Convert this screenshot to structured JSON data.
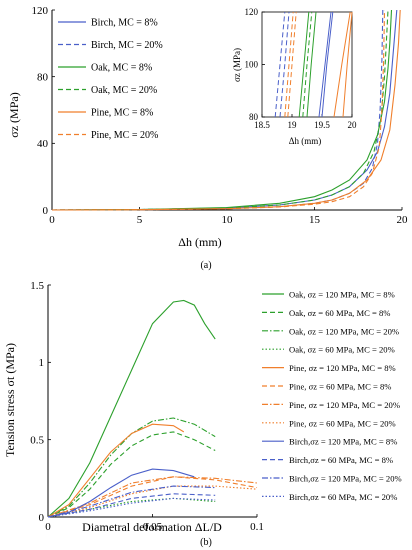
{
  "panel_labels": {
    "a": "(a)",
    "b": "(b)"
  },
  "colors": {
    "birch": "#4a5fc9",
    "oak": "#2ca02c",
    "pine": "#f07f2c",
    "axis": "#000000"
  },
  "chart_data": [
    {
      "type": "line",
      "panel": "a",
      "xlabel": "Δh  (mm)",
      "ylabel": "σz  (MPa)",
      "xlim": [
        0,
        20
      ],
      "ylim": [
        0,
        120
      ],
      "xticks": [
        "0",
        "5",
        "10",
        "15",
        "20"
      ],
      "yticks": [
        "0",
        "40",
        "80",
        "120"
      ],
      "grid": false,
      "legend_position": "top-left",
      "series": [
        {
          "name": "Birch, MC = 8%",
          "color": "#4a5fc9",
          "dash": "solid",
          "x": [
            0,
            5,
            10,
            13,
            15,
            16,
            17,
            18,
            18.6,
            19,
            19.3,
            19.5,
            19.7
          ],
          "y": [
            0,
            0.3,
            1.2,
            3,
            6,
            9,
            14,
            24,
            35,
            50,
            70,
            95,
            120
          ]
        },
        {
          "name": "Birch, MC = 20%",
          "color": "#4a5fc9",
          "dash": "dashed",
          "x": [
            0,
            5,
            10,
            13,
            15,
            16,
            17,
            17.8,
            18.3,
            18.6,
            18.75,
            18.85,
            18.9
          ],
          "y": [
            0,
            0.2,
            0.8,
            2,
            4,
            6,
            10,
            16,
            25,
            40,
            60,
            90,
            120
          ]
        },
        {
          "name": "Oak, MC = 8%",
          "color": "#2ca02c",
          "dash": "solid",
          "x": [
            0,
            5,
            10,
            13,
            15,
            16,
            17,
            18,
            18.6,
            19,
            19.2,
            19.3,
            19.4
          ],
          "y": [
            0,
            0.3,
            1.5,
            4,
            8,
            12,
            18,
            30,
            45,
            65,
            85,
            100,
            120
          ]
        },
        {
          "name": "Oak, MC = 20%",
          "color": "#2ca02c",
          "dash": "dashed",
          "x": [
            0,
            5,
            10,
            13,
            15,
            16,
            17,
            17.8,
            18.4,
            18.8,
            19,
            19.1,
            19.2
          ],
          "y": [
            0,
            0.3,
            1.2,
            3,
            6,
            9,
            14,
            22,
            35,
            55,
            80,
            100,
            120
          ]
        },
        {
          "name": "Pine, MC = 8%",
          "color": "#f07f2c",
          "dash": "solid",
          "x": [
            0,
            5,
            10,
            13,
            15,
            16,
            17,
            18,
            18.8,
            19.3,
            19.6,
            19.8,
            19.9
          ],
          "y": [
            0,
            0.2,
            0.8,
            2,
            4,
            6,
            10,
            18,
            30,
            48,
            75,
            100,
            120
          ]
        },
        {
          "name": "Pine, MC = 20%",
          "color": "#f07f2c",
          "dash": "dashed",
          "x": [
            0,
            5,
            10,
            13,
            15,
            16,
            17,
            17.8,
            18.3,
            18.7,
            18.85,
            18.95,
            19
          ],
          "y": [
            0,
            0.2,
            0.7,
            1.8,
            3.5,
            5,
            8,
            14,
            22,
            38,
            60,
            90,
            120
          ]
        }
      ],
      "inset": {
        "xlabel": "Δh  (mm)",
        "ylabel": "σz (MPa)",
        "xlim": [
          18.5,
          20
        ],
        "ylim": [
          80,
          120
        ],
        "xticks": [
          "18.5",
          "19",
          "19.5",
          "20"
        ],
        "yticks": [
          "80",
          "100",
          "120"
        ],
        "series": [
          {
            "color": "#4a5fc9",
            "dash": "dashed",
            "x": [
              18.72,
              18.8,
              18.88
            ],
            "y": [
              80,
              100,
              120
            ]
          },
          {
            "color": "#4a5fc9",
            "dash": "dashed",
            "x": [
              18.8,
              18.88,
              18.95
            ],
            "y": [
              80,
              100,
              120
            ]
          },
          {
            "color": "#f07f2c",
            "dash": "dashed",
            "x": [
              18.88,
              18.95,
              19.02
            ],
            "y": [
              80,
              100,
              120
            ]
          },
          {
            "color": "#f07f2c",
            "dash": "dashed",
            "x": [
              18.93,
              19.0,
              19.07
            ],
            "y": [
              80,
              100,
              120
            ]
          },
          {
            "color": "#2ca02c",
            "dash": "solid",
            "x": [
              19.12,
              19.2,
              19.28
            ],
            "y": [
              80,
              100,
              120
            ]
          },
          {
            "color": "#2ca02c",
            "dash": "dashed",
            "x": [
              19.18,
              19.25,
              19.33
            ],
            "y": [
              80,
              100,
              120
            ]
          },
          {
            "color": "#2ca02c",
            "dash": "solid",
            "x": [
              19.25,
              19.32,
              19.4
            ],
            "y": [
              80,
              100,
              120
            ]
          },
          {
            "color": "#4a5fc9",
            "dash": "solid",
            "x": [
              19.45,
              19.55,
              19.65
            ],
            "y": [
              80,
              100,
              120
            ]
          },
          {
            "color": "#4a5fc9",
            "dash": "solid",
            "x": [
              19.5,
              19.58,
              19.68
            ],
            "y": [
              80,
              100,
              120
            ]
          },
          {
            "color": "#f07f2c",
            "dash": "solid",
            "x": [
              19.7,
              19.83,
              19.97
            ],
            "y": [
              80,
              100,
              120
            ]
          },
          {
            "color": "#f07f2c",
            "dash": "solid",
            "x": [
              19.85,
              19.92,
              20.0
            ],
            "y": [
              80,
              100,
              120
            ]
          }
        ]
      }
    },
    {
      "type": "line",
      "panel": "b",
      "xlabel": "Diametral deformation ΔL/D",
      "ylabel": "Tension stress  σt  (MPa)",
      "xlim": [
        0,
        0.1
      ],
      "ylim": [
        0,
        1.5
      ],
      "xticks": [
        "0",
        "0.05",
        "0.1"
      ],
      "yticks": [
        "0",
        "0.5",
        "1",
        "1.5"
      ],
      "grid": false,
      "legend_position": "right",
      "series": [
        {
          "name": "Oak, σz = 120 MPa, MC = 8%",
          "color": "#2ca02c",
          "dash": "solid",
          "x": [
            0,
            0.01,
            0.02,
            0.03,
            0.04,
            0.05,
            0.06,
            0.065,
            0.07,
            0.075,
            0.08
          ],
          "y": [
            0,
            0.12,
            0.35,
            0.65,
            0.95,
            1.25,
            1.39,
            1.4,
            1.37,
            1.25,
            1.15
          ]
        },
        {
          "name": "Oak, σz =  60 MPa, MC = 8%",
          "color": "#2ca02c",
          "dash": "dashed",
          "x": [
            0,
            0.01,
            0.02,
            0.03,
            0.04,
            0.05,
            0.06,
            0.07,
            0.08
          ],
          "y": [
            0,
            0.06,
            0.18,
            0.34,
            0.46,
            0.53,
            0.55,
            0.5,
            0.43
          ]
        },
        {
          "name": "Oak, σz =  120 MPa, MC = 20%",
          "color": "#2ca02c",
          "dash": "dashdot",
          "x": [
            0,
            0.01,
            0.02,
            0.03,
            0.04,
            0.05,
            0.06,
            0.07,
            0.08
          ],
          "y": [
            0,
            0.07,
            0.22,
            0.4,
            0.54,
            0.62,
            0.64,
            0.6,
            0.52
          ]
        },
        {
          "name": "Oak, σz =  60 MPa, MC = 20%",
          "color": "#2ca02c",
          "dash": "dotted",
          "x": [
            0,
            0.02,
            0.04,
            0.06,
            0.08
          ],
          "y": [
            0,
            0.05,
            0.1,
            0.12,
            0.1
          ]
        },
        {
          "name": "Pine, σz = 120 MPa, MC = 8%",
          "color": "#f07f2c",
          "dash": "solid",
          "x": [
            0,
            0.01,
            0.02,
            0.03,
            0.04,
            0.05,
            0.06,
            0.065
          ],
          "y": [
            0,
            0.08,
            0.25,
            0.42,
            0.54,
            0.6,
            0.59,
            0.55
          ]
        },
        {
          "name": "Pine, σz =  60 MPa, MC = 8%",
          "color": "#f07f2c",
          "dash": "dashed",
          "x": [
            0,
            0.02,
            0.04,
            0.06,
            0.08,
            0.1
          ],
          "y": [
            0,
            0.08,
            0.2,
            0.26,
            0.24,
            0.19
          ]
        },
        {
          "name": "Pine, σz = 120 MPa, MC = 20%",
          "color": "#f07f2c",
          "dash": "dashdot",
          "x": [
            0,
            0.02,
            0.04,
            0.06,
            0.08,
            0.1
          ],
          "y": [
            0,
            0.09,
            0.22,
            0.26,
            0.25,
            0.22
          ]
        },
        {
          "name": "Pine, σz =  60 MPa, MC = 20%",
          "color": "#f07f2c",
          "dash": "dotted",
          "x": [
            0,
            0.02,
            0.04,
            0.06,
            0.08,
            0.1
          ],
          "y": [
            0,
            0.06,
            0.15,
            0.2,
            0.2,
            0.18
          ]
        },
        {
          "name": "Birch,σz = 120 MPa, MC = 8%",
          "color": "#4a5fc9",
          "dash": "solid",
          "x": [
            0,
            0.01,
            0.02,
            0.03,
            0.04,
            0.05,
            0.06,
            0.07
          ],
          "y": [
            0,
            0.03,
            0.1,
            0.19,
            0.27,
            0.31,
            0.3,
            0.26
          ]
        },
        {
          "name": "Birch,σz =  60 MPa, MC = 8%",
          "color": "#4a5fc9",
          "dash": "dashed",
          "x": [
            0,
            0.02,
            0.04,
            0.06,
            0.08
          ],
          "y": [
            0,
            0.05,
            0.12,
            0.15,
            0.14
          ]
        },
        {
          "name": "Birch,σz = 120 MPa, MC = 20%",
          "color": "#4a5fc9",
          "dash": "dashdot",
          "x": [
            0,
            0.02,
            0.04,
            0.06,
            0.08
          ],
          "y": [
            0,
            0.07,
            0.16,
            0.2,
            0.19
          ]
        },
        {
          "name": "Birch,σz =  60 MPa, MC = 20%",
          "color": "#4a5fc9",
          "dash": "dotted",
          "x": [
            0,
            0.02,
            0.04,
            0.06,
            0.08
          ],
          "y": [
            0,
            0.04,
            0.09,
            0.12,
            0.11
          ]
        }
      ]
    }
  ]
}
